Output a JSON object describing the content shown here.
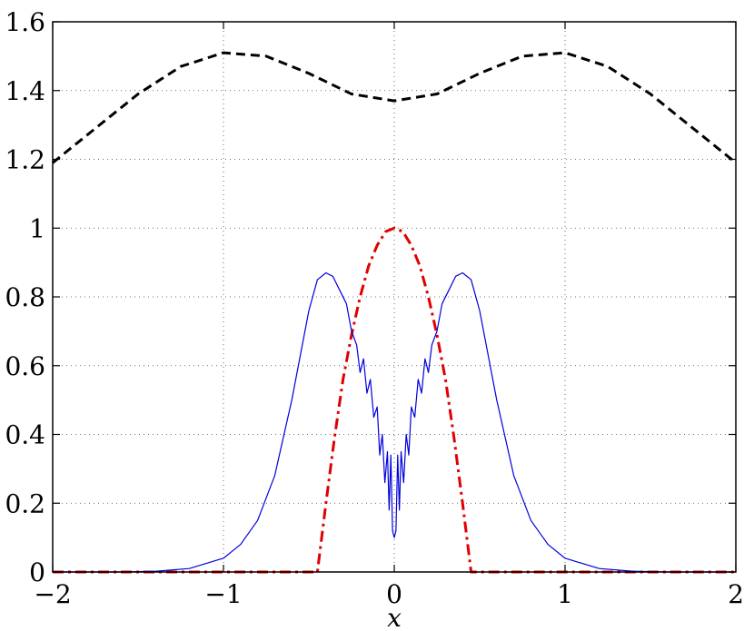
{
  "chart_data": {
    "type": "line",
    "title": "",
    "xlabel": "x",
    "ylabel": "",
    "xlim": [
      -2,
      2
    ],
    "ylim": [
      0,
      1.6
    ],
    "grid": true,
    "legend": "none",
    "x_ticks": [
      "−2",
      "−1",
      "0",
      "1",
      "2"
    ],
    "y_ticks": [
      "0",
      "0.2",
      "0.4",
      "0.6",
      "0.8",
      "1",
      "1.2",
      "1.4",
      "1.6"
    ],
    "series": [
      {
        "style": "dashed",
        "color": "#000000",
        "x": [
          -2.0,
          -1.75,
          -1.5,
          -1.25,
          -1.0,
          -0.75,
          -0.5,
          -0.25,
          0.0,
          0.25,
          0.5,
          0.75,
          1.0,
          1.25,
          1.5,
          1.75,
          2.0
        ],
        "y": [
          1.19,
          1.29,
          1.39,
          1.47,
          1.51,
          1.5,
          1.45,
          1.39,
          1.37,
          1.39,
          1.45,
          1.5,
          1.51,
          1.47,
          1.39,
          1.29,
          1.19
        ]
      },
      {
        "style": "dashdot",
        "color": "#e00000",
        "x": [
          -2.0,
          -0.45,
          -0.4,
          -0.35,
          -0.3,
          -0.25,
          -0.2,
          -0.15,
          -0.1,
          -0.05,
          0.0,
          0.05,
          0.1,
          0.15,
          0.2,
          0.25,
          0.3,
          0.35,
          0.4,
          0.45,
          2.0
        ],
        "y": [
          0.0,
          0.0,
          0.2,
          0.39,
          0.56,
          0.69,
          0.8,
          0.89,
          0.95,
          0.99,
          1.0,
          0.99,
          0.95,
          0.89,
          0.8,
          0.69,
          0.56,
          0.39,
          0.2,
          0.0,
          0.0
        ]
      },
      {
        "style": "solid",
        "color": "#0000dd",
        "x": [
          -2.0,
          -1.6,
          -1.4,
          -1.2,
          -1.0,
          -0.9,
          -0.8,
          -0.7,
          -0.6,
          -0.5,
          -0.45,
          -0.4,
          -0.36,
          -0.32,
          -0.28,
          -0.25,
          -0.22,
          -0.2,
          -0.18,
          -0.16,
          -0.14,
          -0.12,
          -0.1,
          -0.085,
          -0.07,
          -0.055,
          -0.04,
          -0.03,
          -0.02,
          -0.01,
          0.0,
          0.01,
          0.02,
          0.03,
          0.04,
          0.055,
          0.07,
          0.085,
          0.1,
          0.12,
          0.14,
          0.16,
          0.18,
          0.2,
          0.22,
          0.25,
          0.28,
          0.32,
          0.36,
          0.4,
          0.45,
          0.5,
          0.6,
          0.7,
          0.8,
          0.9,
          1.0,
          1.2,
          1.4,
          1.6,
          2.0
        ],
        "y": [
          0.0,
          0.0,
          0.002,
          0.01,
          0.04,
          0.08,
          0.15,
          0.28,
          0.5,
          0.76,
          0.85,
          0.87,
          0.86,
          0.82,
          0.78,
          0.7,
          0.66,
          0.58,
          0.62,
          0.52,
          0.56,
          0.45,
          0.48,
          0.34,
          0.4,
          0.26,
          0.35,
          0.18,
          0.34,
          0.12,
          0.1,
          0.12,
          0.34,
          0.18,
          0.35,
          0.26,
          0.4,
          0.34,
          0.48,
          0.45,
          0.56,
          0.52,
          0.62,
          0.58,
          0.66,
          0.7,
          0.78,
          0.82,
          0.86,
          0.87,
          0.85,
          0.76,
          0.5,
          0.28,
          0.15,
          0.08,
          0.04,
          0.01,
          0.002,
          0.0,
          0.0
        ]
      }
    ]
  }
}
